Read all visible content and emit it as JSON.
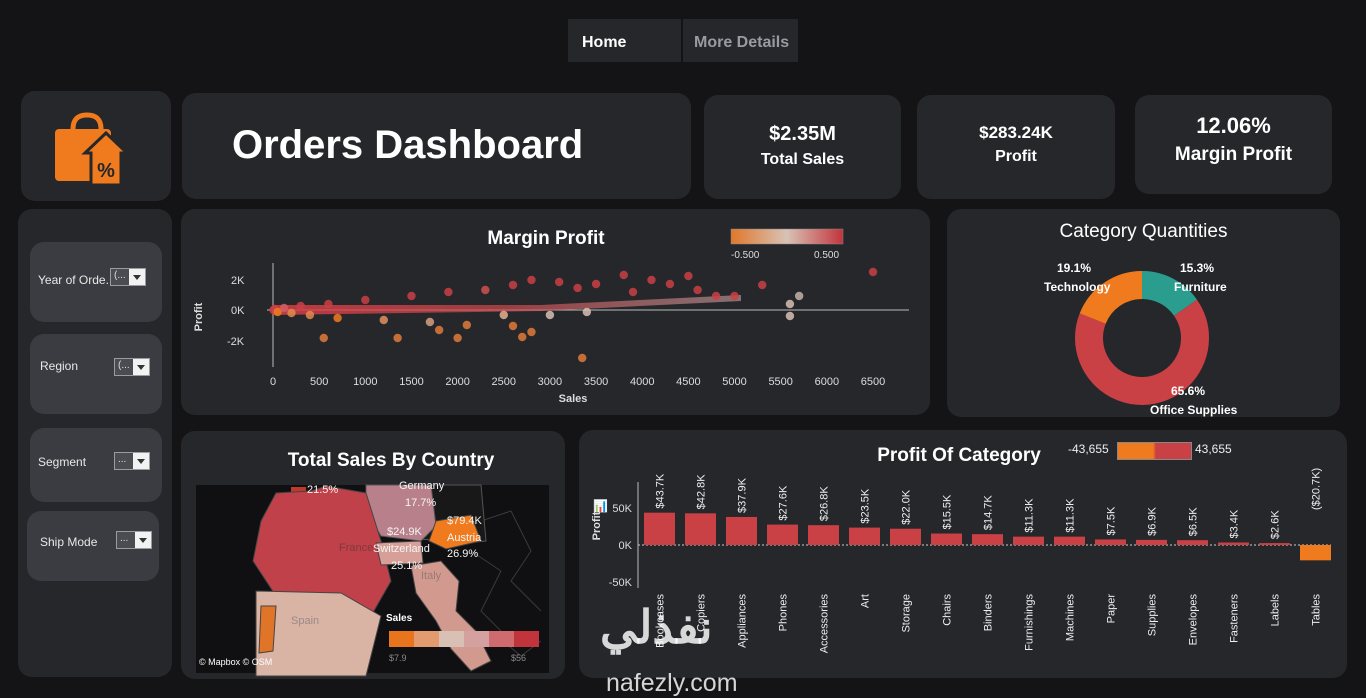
{
  "tabs": [
    {
      "label": "Home"
    },
    {
      "label": "More Details"
    }
  ],
  "header": {
    "title": "Orders Dashboard"
  },
  "kpis": [
    {
      "value": "$2.35M",
      "label": "Total Sales"
    },
    {
      "value": "$283.24K",
      "label": "Profit"
    },
    {
      "value": "12.06%",
      "label": "Margin Profit"
    }
  ],
  "filters": [
    {
      "label": "Year of Orde..",
      "value": "(..."
    },
    {
      "label": "Region",
      "value": "(..."
    },
    {
      "label": "Segment",
      "value": "..."
    },
    {
      "label": "Ship Mode",
      "value": "..."
    }
  ],
  "colors": {
    "background": "#141416",
    "card": "#26272b",
    "accent": "#f07b1e",
    "red": "#c94045",
    "teal": "#2a9d8f"
  },
  "scatter": {
    "title": "Margin Profit",
    "legend_min": "-0.500",
    "legend_max": "0.500",
    "xlabel": "Sales",
    "ylabel": "Profit",
    "x_ticks": [
      "0",
      "500",
      "1000",
      "1500",
      "2000",
      "2500",
      "3000",
      "3500",
      "4000",
      "4500",
      "5000",
      "5500",
      "6000",
      "6500"
    ],
    "y_ticks": [
      "2K",
      "0K",
      "-2K"
    ]
  },
  "donut": {
    "title": "Category Quantities",
    "segments": [
      {
        "name": "Furniture",
        "pct": "15.3%",
        "value": 15.3,
        "color": "#2a9d8f"
      },
      {
        "name": "Office Supplies",
        "pct": "65.6%",
        "value": 65.6,
        "color": "#c94045"
      },
      {
        "name": "Technology",
        "pct": "19.1%",
        "value": 19.1,
        "color": "#f07b1e"
      }
    ]
  },
  "map": {
    "title": "Total Sales By Country",
    "labels": [
      "21.5%",
      "Germany",
      "17.7%",
      "$24.9K",
      "$79.4K",
      "Austria",
      "Switzerland",
      "26.9%",
      "25.1%",
      "Spain",
      "France",
      "Italy"
    ],
    "legend_title": "Sales",
    "legend_min": "$7.9",
    "legend_max": "$56",
    "attribution": "© Mapbox © OSM"
  },
  "chart_data": {
    "type": "bar",
    "title": "Profit Of Category",
    "ylabel": "Profit",
    "categories": [
      "Bookcases",
      "Copiers",
      "Appliances",
      "Phones",
      "Accessories",
      "Art",
      "Storage",
      "Chairs",
      "Binders",
      "Furnishings",
      "Machines",
      "Paper",
      "Supplies",
      "Envelopes",
      "Fasteners",
      "Labels",
      "Tables"
    ],
    "values": [
      43700,
      42800,
      37900,
      27600,
      26800,
      23500,
      22000,
      15500,
      14700,
      11300,
      11300,
      7500,
      6900,
      6500,
      3400,
      2600,
      -20700
    ],
    "data_labels": [
      "$43.7K",
      "$42.8K",
      "$37.9K",
      "$27.6K",
      "$26.8K",
      "$23.5K",
      "$22.0K",
      "$15.5K",
      "$14.7K",
      "$11.3K",
      "$11.3K",
      "$7.5K",
      "$6.9K",
      "$6.5K",
      "$3.4K",
      "$2.6K",
      "($20.7K)"
    ],
    "y_ticks": [
      "50K",
      "0K",
      "-50K"
    ],
    "ylim": [
      -62000,
      62000
    ],
    "legend_min": "-43,655",
    "legend_max": "43,655"
  },
  "watermark": {
    "arabic": "نفذلي",
    "latin": "nafezly.com"
  }
}
